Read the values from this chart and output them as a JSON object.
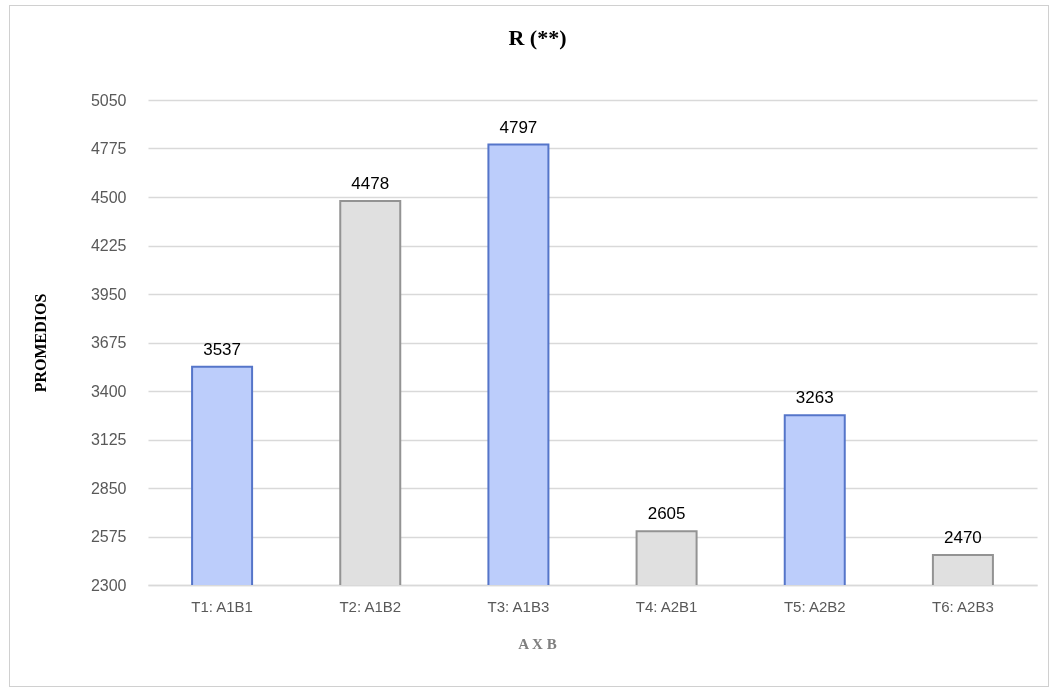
{
  "chart_data": {
    "type": "bar",
    "title": "R (**)",
    "xlabel": "A X B",
    "ylabel": "PROMEDIOS",
    "categories": [
      "T1: A1B1",
      "T2: A1B2",
      "T3: A1B3",
      "T4: A2B1",
      "T5: A2B2",
      "T6: A2B3"
    ],
    "values": [
      3537,
      4478,
      4797,
      2605,
      3263,
      2470
    ],
    "colors": [
      "#bccdfb",
      "#e0e0e0",
      "#bccdfb",
      "#e0e0e0",
      "#bccdfb",
      "#e0e0e0"
    ],
    "ylim": [
      2300,
      5050
    ],
    "yticks": [
      2300,
      2575,
      2850,
      3125,
      3400,
      3675,
      3950,
      4225,
      4500,
      4775,
      5050
    ],
    "grid": "y",
    "data_labels": true
  }
}
